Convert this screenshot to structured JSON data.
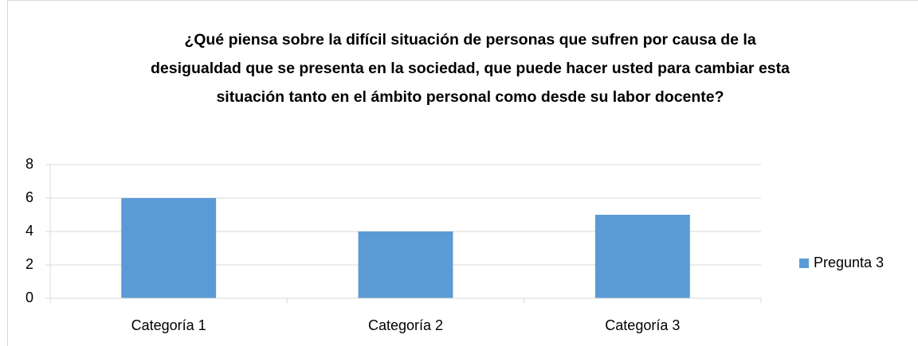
{
  "chart_data": {
    "type": "bar",
    "title": "¿Qué piensa sobre la difícil situación de personas que sufren por causa de la desigualdad que se presenta en la sociedad, que puede hacer usted para cambiar esta situación tanto en el ámbito personal como desde su labor docente?",
    "categories": [
      "Categoría 1",
      "Categoría 2",
      "Categoría 3"
    ],
    "series": [
      {
        "name": "Pregunta 3",
        "color": "#5b9bd5",
        "values": [
          6,
          4,
          5
        ]
      }
    ],
    "ylim": [
      0,
      8
    ],
    "yticks": [
      0,
      2,
      4,
      6,
      8
    ],
    "grid": true,
    "legend": "right"
  }
}
